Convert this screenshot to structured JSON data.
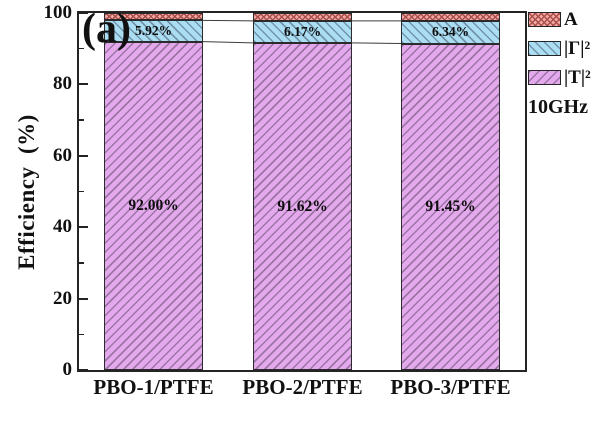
{
  "figure": {
    "panel_label": "(a)",
    "background": "#ffffff"
  },
  "chart_data": {
    "type": "bar",
    "stacked": true,
    "orientation": "vertical",
    "title": "",
    "xlabel": "",
    "ylabel": "Efficiency  (%)",
    "ylim": [
      0,
      100
    ],
    "yticks_major": [
      0,
      20,
      40,
      60,
      80,
      100
    ],
    "yticks_minor": [
      10,
      30,
      50,
      70,
      90
    ],
    "grid": false,
    "axis_color": "#242424",
    "categories": [
      "PBO-1/PTFE",
      "PBO-2/PTFE",
      "PBO-3/PTFE"
    ],
    "series": [
      {
        "name": "|T|²",
        "key": "T",
        "values": [
          92.0,
          91.62,
          91.45
        ],
        "data_labels": [
          "92.00%",
          "91.62%",
          "91.45%"
        ],
        "fill": "#e4a8ec",
        "hatch": "diagonal-up",
        "hatch_color": "#9c74a6"
      },
      {
        "name": "|Γ|²",
        "key": "G",
        "values": [
          5.92,
          6.17,
          6.34
        ],
        "data_labels": [
          "5.92%",
          "6.17%",
          "6.34%"
        ],
        "fill": "#abdef2",
        "hatch": "diagonal-down",
        "hatch_color": "#7295ac"
      },
      {
        "name": "A",
        "key": "A",
        "values": [
          2.08,
          2.21,
          2.21
        ],
        "data_labels": [
          "",
          "",
          ""
        ],
        "fill": "#f3a8a4",
        "hatch": "cross-diagonal",
        "hatch_color": "#a84f4c"
      }
    ],
    "legend": {
      "position": "outside-right",
      "entries": [
        {
          "label": "A",
          "series": "A"
        },
        {
          "label": "|Γ|²",
          "series": "G"
        },
        {
          "label": "|T|²",
          "series": "T"
        }
      ],
      "note": "10GHz"
    }
  }
}
